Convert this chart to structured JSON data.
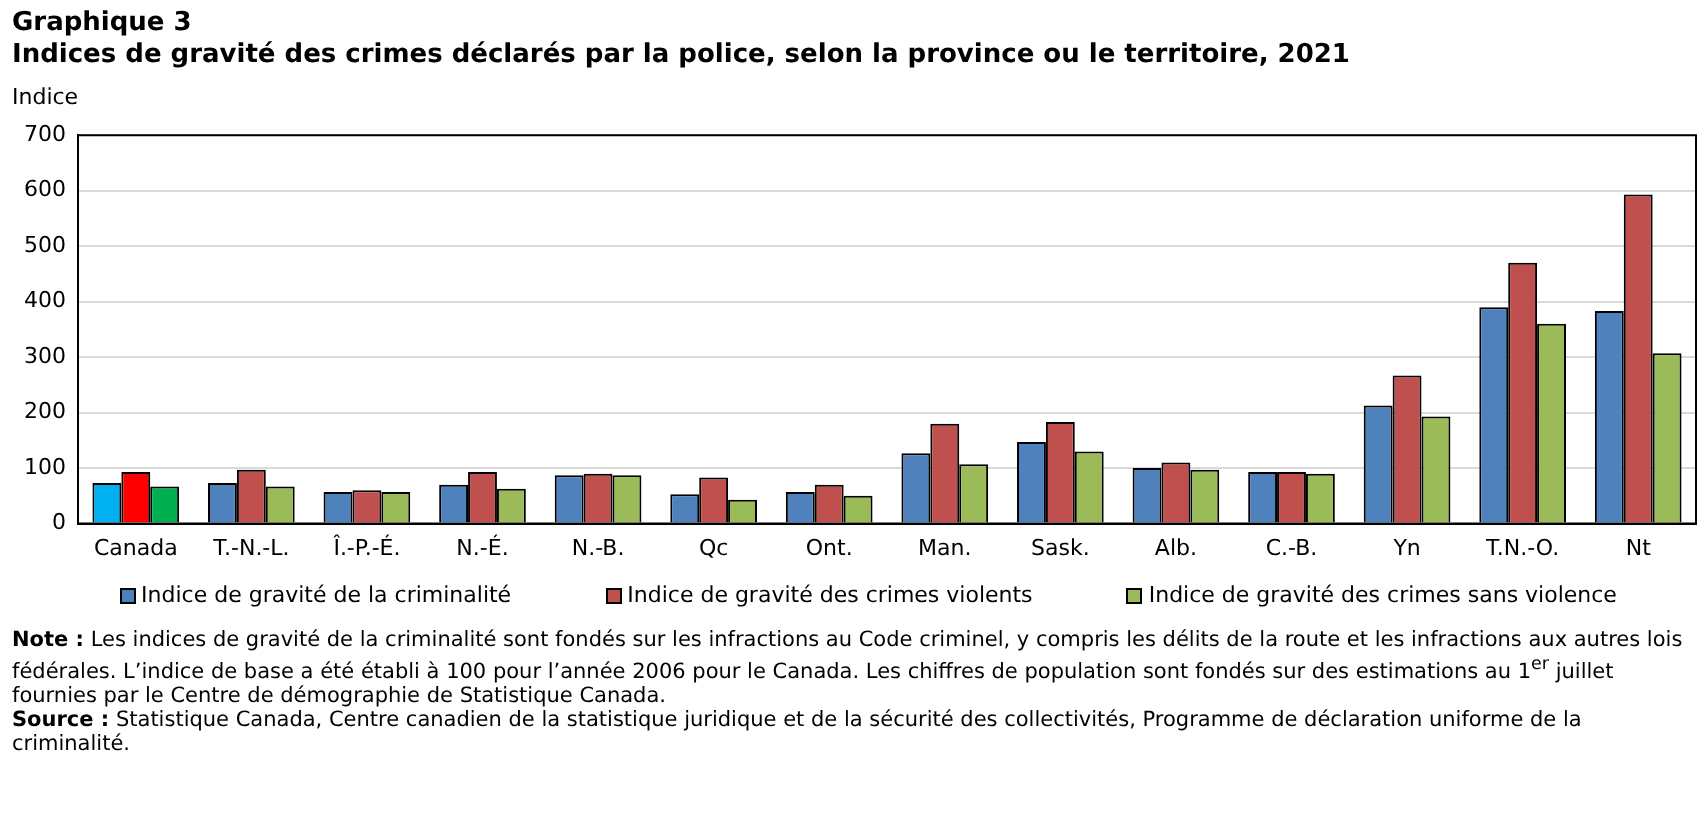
{
  "chart_data": {
    "type": "bar",
    "title": "Graphique 3",
    "subtitle": "Indices de gravité des crimes déclarés par la police, selon la province ou le territoire, 2021",
    "ylabel": "Indice",
    "categories": [
      "Canada",
      "T.-N.-L.",
      "Î.-P.-É.",
      "N.-É.",
      "N.-B.",
      "Qc",
      "Ont.",
      "Man.",
      "Sask.",
      "Alb.",
      "C.-B.",
      "Yn",
      "T.N.-O.",
      "Nt"
    ],
    "series": [
      {
        "name": "Indice de gravité de la criminalité",
        "color": "#4f81bd",
        "colors": [
          "#00b0f0",
          "#4f81bd",
          "#4f81bd",
          "#4f81bd",
          "#4f81bd",
          "#4f81bd",
          "#4f81bd",
          "#4f81bd",
          "#4f81bd",
          "#4f81bd",
          "#4f81bd",
          "#4f81bd",
          "#4f81bd",
          "#4f81bd"
        ],
        "values": [
          73,
          73,
          57,
          70,
          87,
          53,
          57,
          127,
          147,
          100,
          93,
          213,
          390,
          383
        ]
      },
      {
        "name": "Indice de gravité des crimes violents",
        "color": "#c0504d",
        "colors": [
          "#ff0000",
          "#c0504d",
          "#c0504d",
          "#c0504d",
          "#c0504d",
          "#c0504d",
          "#c0504d",
          "#c0504d",
          "#c0504d",
          "#c0504d",
          "#c0504d",
          "#c0504d",
          "#c0504d",
          "#c0504d"
        ],
        "values": [
          93,
          97,
          60,
          93,
          90,
          83,
          70,
          180,
          183,
          110,
          93,
          267,
          470,
          593
        ]
      },
      {
        "name": "Indice de gravité des crimes sans violence",
        "color": "#9bbb59",
        "colors": [
          "#00b050",
          "#9bbb59",
          "#9bbb59",
          "#9bbb59",
          "#9bbb59",
          "#9bbb59",
          "#9bbb59",
          "#9bbb59",
          "#9bbb59",
          "#9bbb59",
          "#9bbb59",
          "#9bbb59",
          "#9bbb59",
          "#9bbb59"
        ],
        "values": [
          67,
          67,
          57,
          63,
          87,
          43,
          50,
          107,
          130,
          97,
          90,
          193,
          360,
          307
        ]
      }
    ],
    "ylim": [
      0,
      700
    ],
    "yticks": [
      0,
      100,
      200,
      300,
      400,
      500,
      600,
      700
    ],
    "grid": "y",
    "legend": "bottom",
    "annotations": [
      "Note : Les indices de gravité de la criminalité sont fondés sur les infractions au Code criminel, y compris les délits de la route et les infractions aux autres lois fédérales. L’indice de base a été établi à 100 pour l’année 2006 pour le Canada. Les chiffres de population sont fondés sur des estimations au 1$^{er}$ juillet fournies par le Centre de démographie de Statistique Canada.",
      "Source : Statistique Canada, Centre canadien de la statistique juridique et de la sécurité des collectivités, Programme de déclaration uniforme de la criminalité."
    ]
  }
}
